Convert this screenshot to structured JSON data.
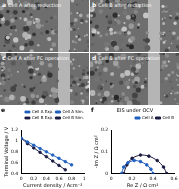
{
  "panels": [
    {
      "label": "a",
      "title": "Cell A after reduction"
    },
    {
      "label": "b",
      "title": "Cell B after reduction"
    },
    {
      "label": "c",
      "title": "Cell A after FC operation"
    },
    {
      "label": "d",
      "title": "Cell B after FC operation"
    }
  ],
  "chart_data": [
    {
      "type": "scatter",
      "label": "e",
      "x_label": "Current density / Acm⁻²",
      "y_label": "Terminal Voltage / V",
      "xlim": [
        0,
        1.0
      ],
      "xticks": [
        0,
        0.2,
        0.4,
        0.6,
        0.8,
        1.0
      ],
      "ylim": [
        0.4,
        1.2
      ],
      "yticks": [
        0.4,
        0.6,
        0.8,
        1.0,
        1.2
      ],
      "legend": "top",
      "series": [
        {
          "name": "Cell A Exp.",
          "color": "#1f5fbf",
          "marker": "circle",
          "line_style": "none",
          "x": [
            0,
            0.1,
            0.2,
            0.3,
            0.4,
            0.5,
            0.6,
            0.7,
            0.8
          ],
          "values": [
            1.05,
            0.98,
            0.92,
            0.86,
            0.8,
            0.74,
            0.68,
            0.62,
            0.56
          ]
        },
        {
          "name": "Cell A Sim.",
          "color": "#1f5fbf",
          "marker": "none",
          "line_style": "solid",
          "x": [
            0,
            0.1,
            0.2,
            0.3,
            0.4,
            0.5,
            0.6,
            0.7,
            0.8
          ],
          "values": [
            1.06,
            0.985,
            0.925,
            0.862,
            0.8,
            0.74,
            0.68,
            0.62,
            0.56
          ]
        },
        {
          "name": "Cell B Exp.",
          "color": "#1a1a40",
          "marker": "circle",
          "line_style": "none",
          "x": [
            0,
            0.1,
            0.2,
            0.3,
            0.4,
            0.5,
            0.6,
            0.7
          ],
          "values": [
            1.04,
            0.95,
            0.87,
            0.79,
            0.71,
            0.63,
            0.55,
            0.47
          ]
        },
        {
          "name": "Cell B Sim.",
          "color": "#1a1a40",
          "marker": "none",
          "line_style": "solid",
          "x": [
            0,
            0.1,
            0.2,
            0.3,
            0.4,
            0.5,
            0.6,
            0.7
          ],
          "values": [
            1.05,
            0.955,
            0.872,
            0.79,
            0.71,
            0.63,
            0.55,
            0.47
          ]
        }
      ]
    },
    {
      "type": "scatter",
      "label": "f",
      "title": "EIS under OCV",
      "x_label": "Re Z / Ω cm²",
      "y_label": "-Im Z / Ω cm²",
      "xlim": [
        0,
        0.6
      ],
      "xticks": [
        0,
        0.2,
        0.4,
        0.6
      ],
      "ylim": [
        0,
        0.2
      ],
      "yticks": [
        0,
        0.1,
        0.2
      ],
      "legend": "top",
      "series": [
        {
          "name": "Cell A",
          "color": "#1f5fbf",
          "marker": "circle",
          "line_style": "solid",
          "x": [
            0.1,
            0.12,
            0.16,
            0.22,
            0.28,
            0.34,
            0.38,
            0.4
          ],
          "values": [
            0,
            0.03,
            0.05,
            0.06,
            0.055,
            0.04,
            0.02,
            0
          ]
        },
        {
          "name": "Cell B",
          "color": "#1a1a40",
          "marker": "circle",
          "line_style": "solid",
          "x": [
            0.12,
            0.15,
            0.2,
            0.28,
            0.36,
            0.44,
            0.5,
            0.53
          ],
          "values": [
            0,
            0.04,
            0.07,
            0.085,
            0.08,
            0.06,
            0.03,
            0
          ]
        }
      ]
    }
  ]
}
